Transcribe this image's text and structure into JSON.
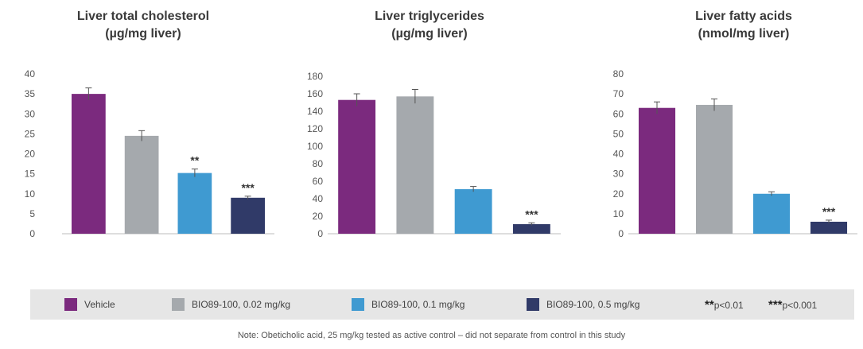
{
  "colors": {
    "vehicle": "#7b2a7e",
    "low": "#a5a9ad",
    "mid": "#3f9ad1",
    "high": "#303a68"
  },
  "charts": [
    {
      "title_line1": "Liver total cholesterol",
      "title_line2": "(µg/mg liver)"
    },
    {
      "title_line1": "Liver triglycerides",
      "title_line2": "(µg/mg liver)"
    },
    {
      "title_line1": "Liver fatty acids",
      "title_line2": "(nmol/mg liver)"
    }
  ],
  "chart_data": [
    {
      "type": "bar",
      "title": "Liver total cholesterol (µg/mg liver)",
      "categories": [
        "Vehicle",
        "BIO89-100, 0.02 mg/kg",
        "BIO89-100, 0.1 mg/kg",
        "BIO89-100, 0.5 mg/kg"
      ],
      "values": [
        35,
        24.5,
        15.2,
        9
      ],
      "errors": [
        1.5,
        1.3,
        1.0,
        0.4
      ],
      "significance": [
        "",
        "",
        "**",
        "***"
      ],
      "ylim": [
        0,
        40
      ],
      "yticks": [
        0,
        5,
        10,
        15,
        20,
        25,
        30,
        35,
        40
      ]
    },
    {
      "type": "bar",
      "title": "Liver triglycerides (µg/mg liver)",
      "categories": [
        "Vehicle",
        "BIO89-100, 0.02 mg/kg",
        "BIO89-100, 0.1 mg/kg",
        "BIO89-100, 0.5 mg/kg"
      ],
      "values": [
        153,
        157,
        51,
        11
      ],
      "errors": [
        7,
        8,
        3,
        1.5
      ],
      "significance": [
        "",
        "",
        "",
        "***"
      ],
      "ylim": [
        0,
        180
      ],
      "yticks": [
        0,
        20,
        40,
        60,
        80,
        100,
        120,
        140,
        160,
        180
      ]
    },
    {
      "type": "bar",
      "title": "Liver fatty acids (nmol/mg liver)",
      "categories": [
        "Vehicle",
        "BIO89-100, 0.02 mg/kg",
        "BIO89-100, 0.1 mg/kg",
        "BIO89-100, 0.5 mg/kg"
      ],
      "values": [
        63,
        64.5,
        20,
        6
      ],
      "errors": [
        3,
        3,
        1,
        0.8
      ],
      "significance": [
        "",
        "",
        "",
        "***"
      ],
      "ylim": [
        0,
        80
      ],
      "yticks": [
        0,
        10,
        20,
        30,
        40,
        50,
        60,
        70,
        80
      ]
    }
  ],
  "legend": {
    "items": [
      {
        "label": "Vehicle",
        "color": "#7b2a7e"
      },
      {
        "label": "BIO89-100, 0.02 mg/kg",
        "color": "#a5a9ad"
      },
      {
        "label": "BIO89-100, 0.1 mg/kg",
        "color": "#3f9ad1"
      },
      {
        "label": "BIO89-100, 0.5 mg/kg",
        "color": "#303a68"
      }
    ],
    "sig1_stars": "**",
    "sig1_text": "p<0.01",
    "sig2_stars": "***",
    "sig2_text": "p<0.001"
  },
  "note": "Note: Obeticholic acid, 25 mg/kg tested as active control – did not separate from control in this study"
}
